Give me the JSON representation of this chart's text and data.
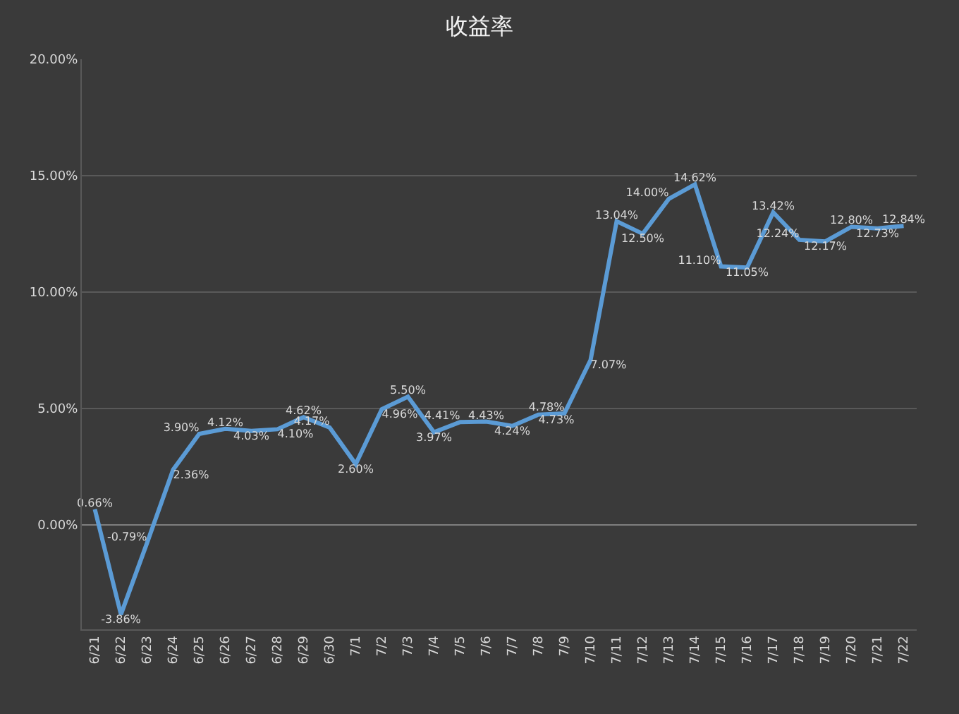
{
  "chart_data": {
    "type": "line",
    "title": "收益率",
    "categories": [
      "6/21",
      "6/22",
      "6/23",
      "6/24",
      "6/25",
      "6/26",
      "6/27",
      "6/28",
      "6/29",
      "6/30",
      "7/1",
      "7/2",
      "7/3",
      "7/4",
      "7/5",
      "7/6",
      "7/7",
      "7/8",
      "7/9",
      "7/10",
      "7/11",
      "7/12",
      "7/13",
      "7/14",
      "7/15",
      "7/16",
      "7/17",
      "7/18",
      "7/19",
      "7/20",
      "7/21",
      "7/22"
    ],
    "series": [
      {
        "color": "#5b9bd5",
        "values": [
          0.66,
          -3.86,
          -0.79,
          2.36,
          3.9,
          4.12,
          4.03,
          4.1,
          4.62,
          4.17,
          2.6,
          4.96,
          5.5,
          3.97,
          4.41,
          4.43,
          4.24,
          4.73,
          4.78,
          7.07,
          13.04,
          12.5,
          14.0,
          14.62,
          11.1,
          11.05,
          13.42,
          12.24,
          12.17,
          12.8,
          12.73,
          12.84
        ],
        "value_labels": [
          "0.66%",
          "-3.86%",
          "-0.79%",
          "2.36%",
          "3.90%",
          "4.12%",
          "4.03%",
          "4.10%",
          "4.62%",
          "4.17%",
          "2.60%",
          "4.96%",
          "5.50%",
          "3.97%",
          "4.41%",
          "4.43%",
          "4.24%",
          "4.73%",
          "4.78%",
          "7.07%",
          "13.04%",
          "12.50%",
          "14.00%",
          "14.62%",
          "11.10%",
          "11.05%",
          "13.42%",
          "12.24%",
          "12.17%",
          "12.80%",
          "12.73%",
          "12.84%"
        ]
      }
    ],
    "ylim": [
      -4.5,
      20
    ],
    "yticks": [
      {
        "value": 0,
        "label": "0.00%"
      },
      {
        "value": 5,
        "label": "5.00%"
      },
      {
        "value": 10,
        "label": "10.00%"
      },
      {
        "value": 15,
        "label": "15.00%"
      },
      {
        "value": 20,
        "label": "20.00%"
      }
    ],
    "grid": "y",
    "legend": false,
    "marker": "none",
    "line_style": "solid"
  }
}
